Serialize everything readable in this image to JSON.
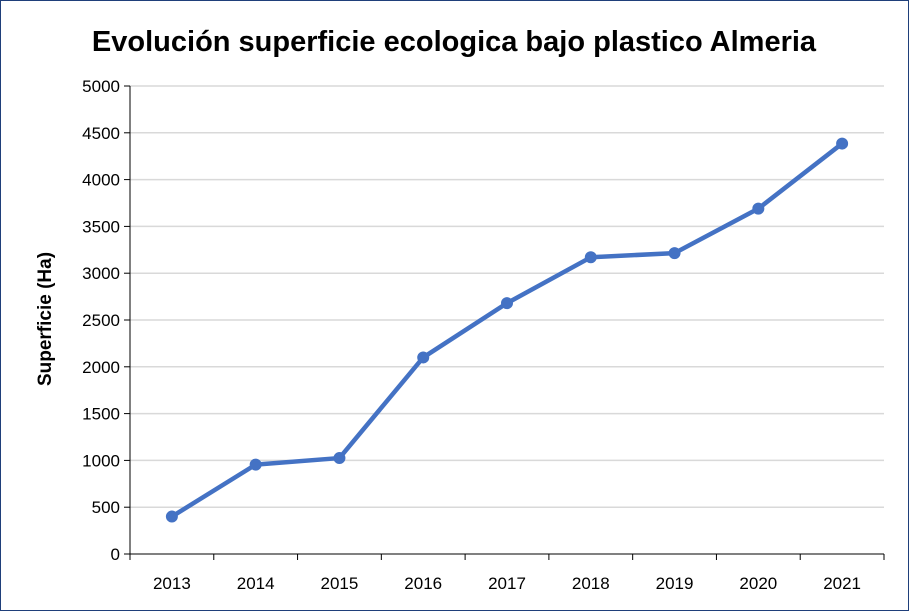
{
  "chart_data": {
    "type": "line",
    "title": "Evolución superficie ecologica bajo plastico Almeria",
    "xlabel": "",
    "ylabel": "Superficie (Ha)",
    "categories": [
      "2013",
      "2014",
      "2015",
      "2016",
      "2017",
      "2018",
      "2019",
      "2020",
      "2021"
    ],
    "series": [
      {
        "values": [
          400,
          955,
          1025,
          2100,
          2680,
          3170,
          3215,
          3690,
          4385
        ]
      }
    ],
    "ylim": [
      0,
      5000
    ],
    "yticks": [
      "0",
      "500",
      "1000",
      "1500",
      "2000",
      "2500",
      "3000",
      "3500",
      "4000",
      "4500",
      "5000"
    ],
    "grid": true,
    "legend": "none",
    "colors": {
      "line": "#4472c4",
      "grid": "#d9d9d9",
      "axis": "#000000",
      "border": "#1f3f7a"
    }
  }
}
